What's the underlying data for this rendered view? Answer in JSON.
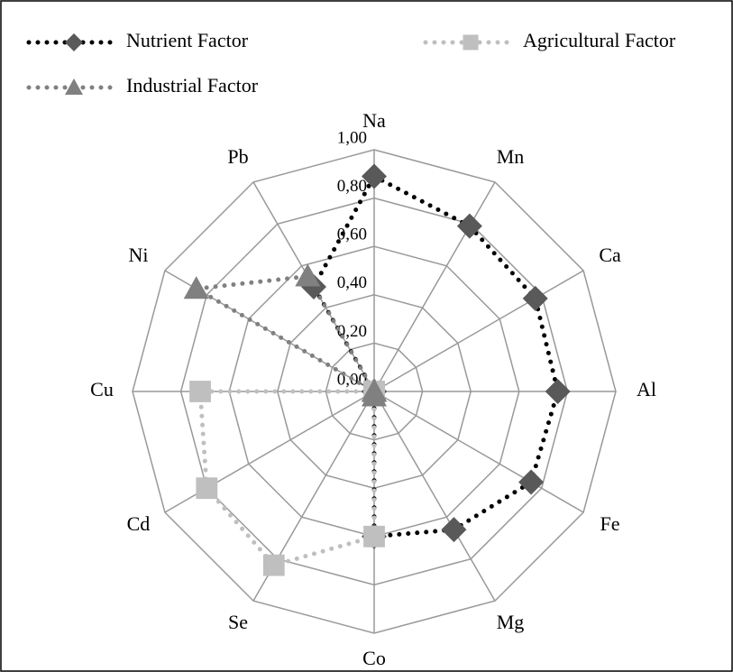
{
  "chart_data": {
    "type": "radar",
    "categories": [
      "Na",
      "Mn",
      "Ca",
      "Al",
      "Fe",
      "Mg",
      "Co",
      "Se",
      "Cd",
      "Cu",
      "Ni",
      "Pb"
    ],
    "series": [
      {
        "name": "Nutrient Factor",
        "color": "#000000",
        "marker_color": "#595959",
        "marker": "diamond",
        "values": [
          0.89,
          0.79,
          0.77,
          0.76,
          0.75,
          0.66,
          0.6,
          0,
          0,
          0,
          0,
          0.5
        ]
      },
      {
        "name": "Agricultural Factor",
        "color": "#bfbfbf",
        "marker_color": "#bfbfbf",
        "marker": "square",
        "values": [
          0,
          0,
          0,
          0,
          0,
          0,
          0.6,
          0.83,
          0.8,
          0.72,
          0,
          0
        ]
      },
      {
        "name": "Industrial Factor",
        "color": "#808080",
        "marker_color": "#808080",
        "marker": "triangle",
        "values": [
          0,
          0,
          0,
          0,
          0,
          0,
          0.02,
          0,
          0,
          0,
          0.85,
          0.55
        ]
      }
    ],
    "ylim": [
      0,
      1
    ],
    "yticks": [
      {
        "value": 0,
        "label": "0,00"
      },
      {
        "value": 0.2,
        "label": "0,20"
      },
      {
        "value": 0.4,
        "label": "0,40"
      },
      {
        "value": 0.6,
        "label": "0,60"
      },
      {
        "value": 0.8,
        "label": "0,80"
      },
      {
        "value": 1,
        "label": "1,00"
      }
    ],
    "grid": true
  }
}
